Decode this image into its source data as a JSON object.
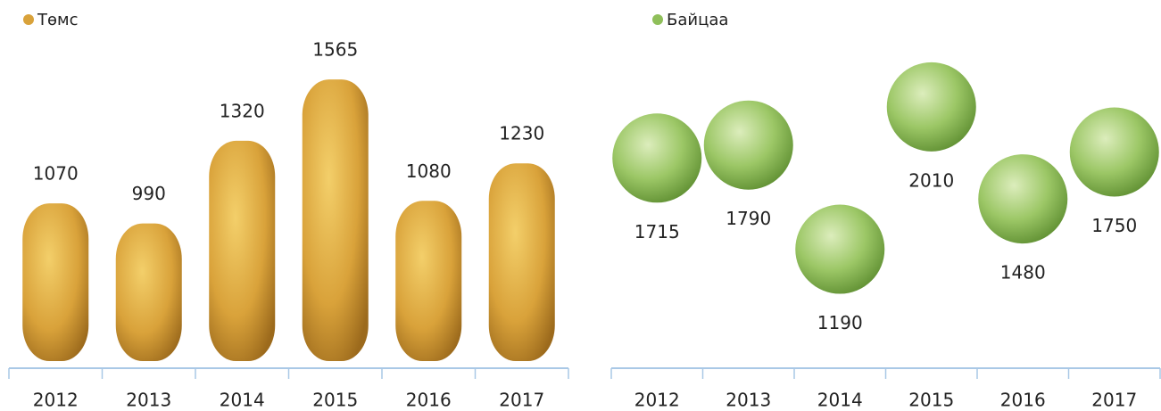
{
  "chart_data": [
    {
      "type": "bar",
      "categories": [
        "2012",
        "2013",
        "2014",
        "2015",
        "2016",
        "2017"
      ],
      "series": [
        {
          "name": "Төмс",
          "color": "#d9a23a",
          "values": [
            1070,
            990,
            1320,
            1565,
            1080,
            1230
          ]
        }
      ],
      "ylim": [
        440,
        1740
      ]
    },
    {
      "type": "line",
      "show_line": false,
      "categories": [
        "2012",
        "2013",
        "2014",
        "2015",
        "2016",
        "2017"
      ],
      "series": [
        {
          "name": "Байцаа",
          "color": "#8fbf5a",
          "values": [
            1715,
            1790,
            1190,
            2010,
            1480,
            1750
          ]
        }
      ],
      "ylim": [
        510,
        2420
      ]
    }
  ]
}
